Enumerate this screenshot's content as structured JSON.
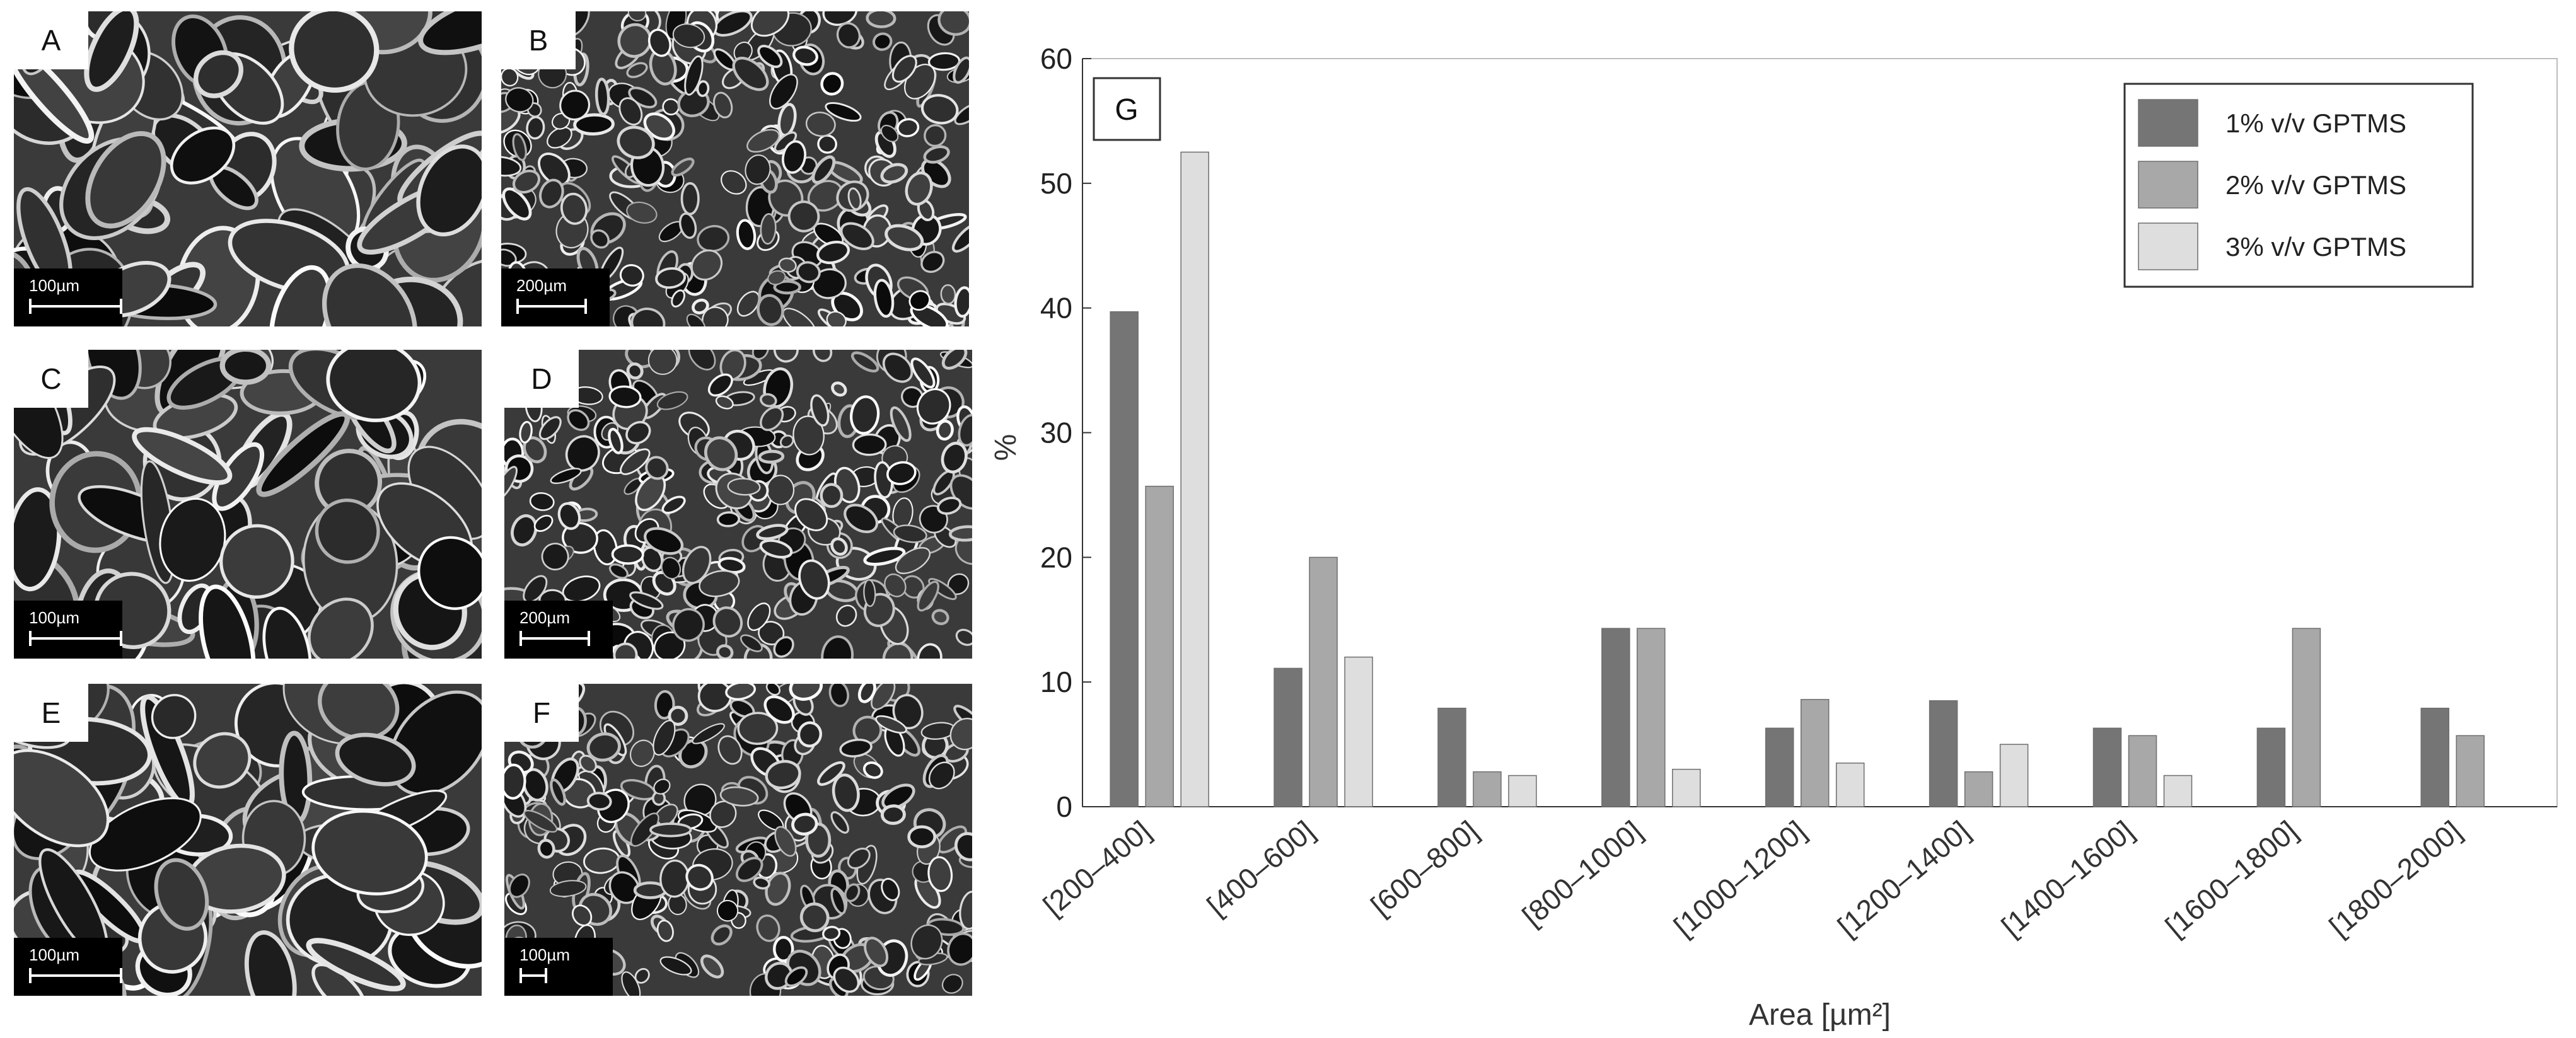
{
  "panels": [
    {
      "label": "A",
      "scale": "100µm"
    },
    {
      "label": "B",
      "scale": "200µm"
    },
    {
      "label": "C",
      "scale": "100µm"
    },
    {
      "label": "D",
      "scale": "200µm"
    },
    {
      "label": "E",
      "scale": "100µm"
    },
    {
      "label": "F",
      "scale": "100µm"
    }
  ],
  "chart_data": {
    "type": "bar",
    "panel_label": "G",
    "categories": [
      "[200–400]",
      "[400–600]",
      "[600–800]",
      "[800–1000]",
      "[1000–1200]",
      "[1200–1400]",
      "[1400–1600]",
      "[1600–1800]",
      "[1800–2000]"
    ],
    "series": [
      {
        "name": "1% v/v GPTMS",
        "color": "#757575",
        "values": [
          39.7,
          11.1,
          7.9,
          14.3,
          6.3,
          8.5,
          6.3,
          6.3,
          7.9
        ]
      },
      {
        "name": "2% v/v GPTMS",
        "color": "#a8a8a8",
        "values": [
          25.7,
          20.0,
          2.8,
          14.3,
          8.6,
          2.8,
          5.7,
          14.3,
          5.7
        ]
      },
      {
        "name": "3% v/v GPTMS",
        "color": "#dedede",
        "values": [
          52.5,
          12.0,
          2.5,
          3.0,
          3.5,
          5.0,
          2.5,
          0,
          0
        ]
      }
    ],
    "xlabel": "Area [µm²]",
    "ylabel": "%",
    "ylim": [
      0,
      60
    ],
    "yticks": [
      0,
      10,
      20,
      30,
      40,
      50,
      60
    ],
    "legend_position": "top-right",
    "grid": false
  }
}
